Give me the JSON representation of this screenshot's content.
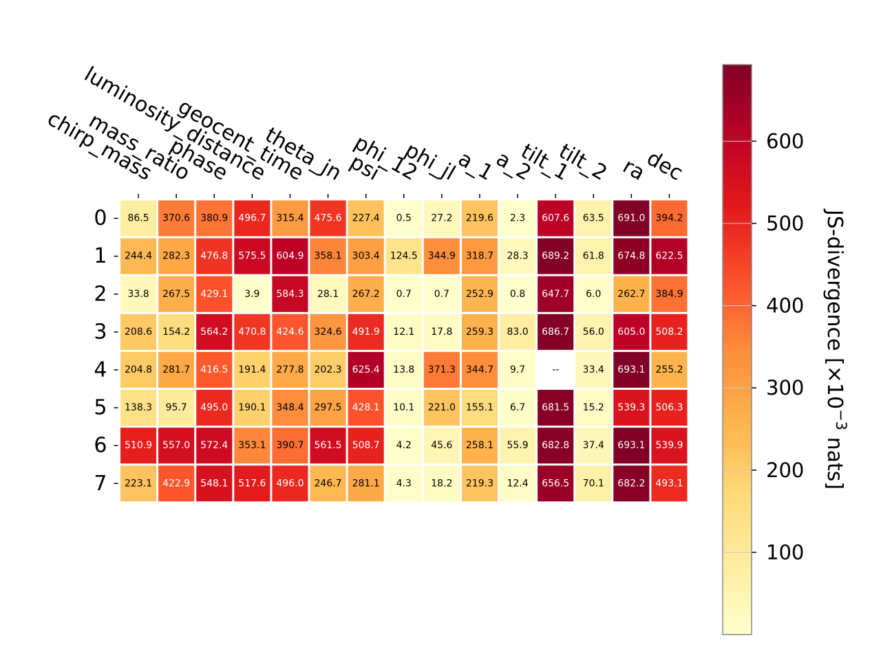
{
  "chart_data": {
    "type": "heatmap",
    "x_labels": [
      "chirp_mass",
      "mass_ratio",
      "phase",
      "luminosity_distance",
      "geocent_time",
      "theta_jn",
      "psi",
      "phi_12",
      "phi_jl",
      "a_1",
      "a_2",
      "tilt_1",
      "tilt_2",
      "ra",
      "dec"
    ],
    "y_labels": [
      "0",
      "1",
      "2",
      "3",
      "4",
      "5",
      "6",
      "7"
    ],
    "values": [
      [
        86.5,
        370.6,
        380.9,
        496.7,
        315.4,
        475.6,
        227.4,
        0.5,
        27.2,
        219.6,
        2.3,
        607.6,
        63.5,
        691.0,
        394.2
      ],
      [
        244.4,
        282.3,
        476.8,
        575.5,
        604.9,
        358.1,
        303.4,
        124.5,
        344.9,
        318.7,
        28.3,
        689.2,
        61.8,
        674.8,
        622.5
      ],
      [
        33.8,
        267.5,
        429.1,
        3.9,
        584.3,
        28.1,
        267.2,
        0.7,
        0.7,
        252.9,
        0.8,
        647.7,
        6.0,
        262.7,
        384.9
      ],
      [
        208.6,
        154.2,
        564.2,
        470.8,
        424.6,
        324.6,
        491.9,
        12.1,
        17.8,
        259.3,
        83.0,
        686.7,
        56.0,
        605.0,
        508.2
      ],
      [
        204.8,
        281.7,
        416.5,
        191.4,
        277.8,
        202.3,
        625.4,
        13.8,
        371.3,
        344.7,
        9.7,
        null,
        33.4,
        693.1,
        255.2
      ],
      [
        138.3,
        95.7,
        495.0,
        190.1,
        348.4,
        297.5,
        428.1,
        10.1,
        221.0,
        155.1,
        6.7,
        681.5,
        15.2,
        539.3,
        506.3
      ],
      [
        510.9,
        557.0,
        572.4,
        353.1,
        390.7,
        561.5,
        508.7,
        4.2,
        45.6,
        258.1,
        55.9,
        682.8,
        37.4,
        693.1,
        539.9
      ],
      [
        223.1,
        422.9,
        548.1,
        517.6,
        496.0,
        246.7,
        281.1,
        4.3,
        18.2,
        219.3,
        12.4,
        656.5,
        70.1,
        682.2,
        493.1
      ]
    ],
    "missing_label": "--",
    "colorbar": {
      "label": "JS-divergence [×10",
      "label_exponent": "−3",
      "label_suffix": " nats]",
      "ticks": [
        "100",
        "200",
        "300",
        "400",
        "500",
        "600"
      ],
      "tick_values": [
        100,
        200,
        300,
        400,
        500,
        600
      ],
      "range": [
        0,
        693.1
      ],
      "colormap": "YlOrRd"
    },
    "grid": false
  }
}
